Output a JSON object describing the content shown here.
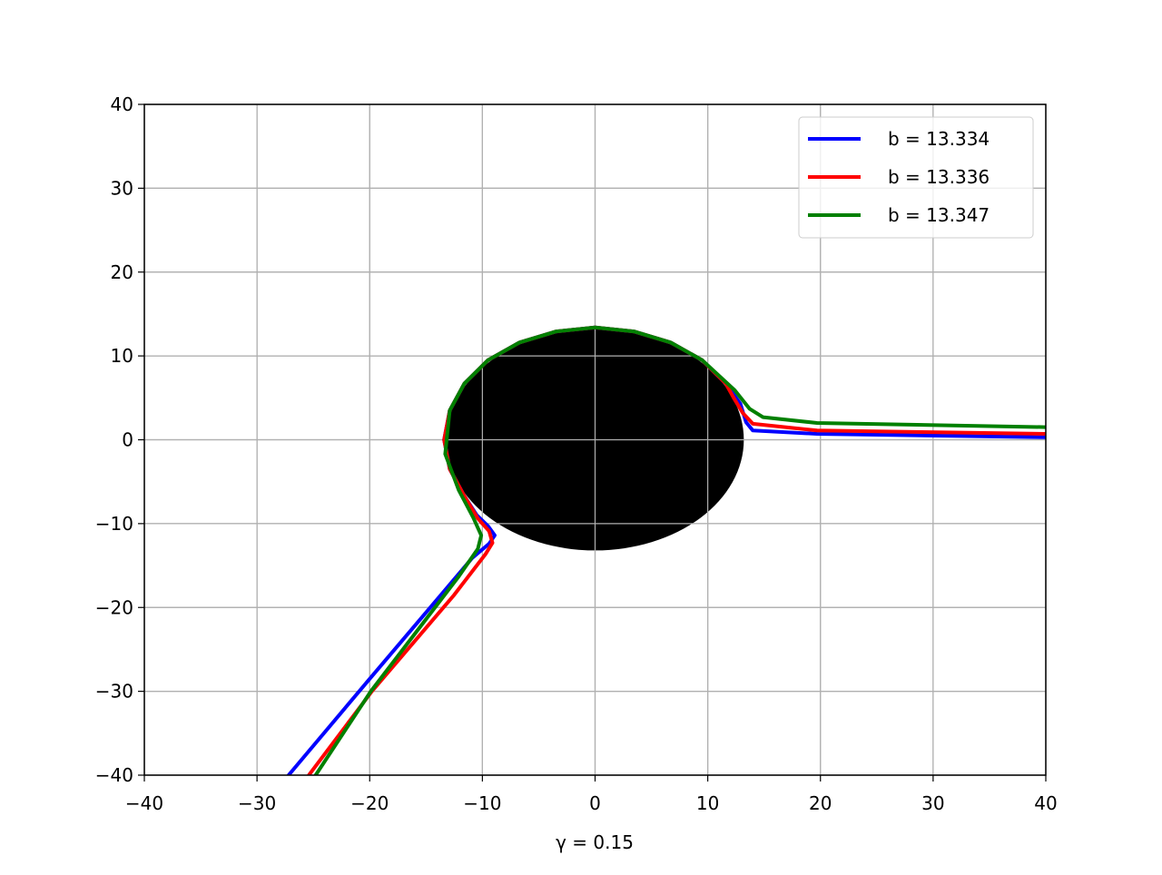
{
  "chart_data": {
    "type": "line",
    "xlabel": "γ = 0.15",
    "xlim": [
      -40,
      40
    ],
    "ylim": [
      -40,
      40
    ],
    "xticks": [
      {
        "value": -40,
        "label": "−40"
      },
      {
        "value": -30,
        "label": "−30"
      },
      {
        "value": -20,
        "label": "−20"
      },
      {
        "value": -10,
        "label": "−10"
      },
      0,
      10,
      20,
      30,
      40
    ],
    "yticks": [
      {
        "value": -40,
        "label": "−40"
      },
      {
        "value": -30,
        "label": "−30"
      },
      {
        "value": -20,
        "label": "−20"
      },
      {
        "value": -10,
        "label": "−10"
      },
      0,
      10,
      20,
      30,
      40
    ],
    "grid": true,
    "legend": "upper right",
    "disk": {
      "center": [
        0,
        0
      ],
      "radius": 13.2,
      "color": "#000000"
    },
    "series": [
      {
        "name": "b = 13.334",
        "color": "#0000ff",
        "x": [
          40,
          19.7,
          14,
          13.4,
          12.9,
          11.6,
          9.5,
          6.7,
          3.5,
          0,
          -3.5,
          -6.7,
          -9.5,
          -11.6,
          -12.9,
          -13.4,
          -12.9,
          -11.6,
          -10.5,
          -9.5,
          -8.9,
          -9.4,
          -10.9,
          -13.3,
          -20,
          -27.2
        ],
        "y": [
          0.3,
          0.7,
          1.1,
          2.1,
          4.3,
          6.7,
          9.5,
          11.6,
          12.9,
          13.4,
          12.9,
          11.6,
          9.5,
          6.7,
          3.5,
          0,
          -3.5,
          -6.7,
          -9,
          -10.3,
          -11.4,
          -12.4,
          -14.1,
          -17.9,
          -28.5,
          -40
        ]
      },
      {
        "name": "b = 13.336",
        "color": "#ff0000",
        "x": [
          40,
          19.7,
          14,
          13.1,
          12.3,
          11.6,
          9.5,
          6.7,
          3.5,
          0,
          -3.5,
          -6.7,
          -9.5,
          -11.6,
          -12.9,
          -13.4,
          -12.9,
          -11.6,
          -10.4,
          -9.4,
          -9.1,
          -9.7,
          -12.5,
          -19.8,
          -25.4
        ],
        "y": [
          0.7,
          1.1,
          1.9,
          3.2,
          5,
          6.7,
          9.5,
          11.6,
          12.9,
          13.4,
          12.9,
          11.6,
          9.5,
          6.7,
          3.5,
          0,
          -3.5,
          -6.7,
          -9.4,
          -10.9,
          -12.3,
          -13.6,
          -18.5,
          -30,
          -40
        ]
      },
      {
        "name": "b = 13.347",
        "color": "#008000",
        "x": [
          40,
          19.7,
          14.9,
          13.7,
          12.4,
          9.5,
          6.7,
          3.5,
          0,
          -3.5,
          -6.7,
          -9.5,
          -11.6,
          -12.9,
          -13.3,
          -12.1,
          -10.8,
          -10.1,
          -10.4,
          -12.1,
          -19.9,
          -24.8
        ],
        "y": [
          1.5,
          2,
          2.7,
          3.7,
          5.9,
          9.5,
          11.6,
          12.9,
          13.4,
          12.9,
          11.6,
          9.5,
          6.7,
          3.5,
          -1.7,
          -6,
          -9.3,
          -11.4,
          -13,
          -16.3,
          -30,
          -40
        ]
      }
    ]
  }
}
